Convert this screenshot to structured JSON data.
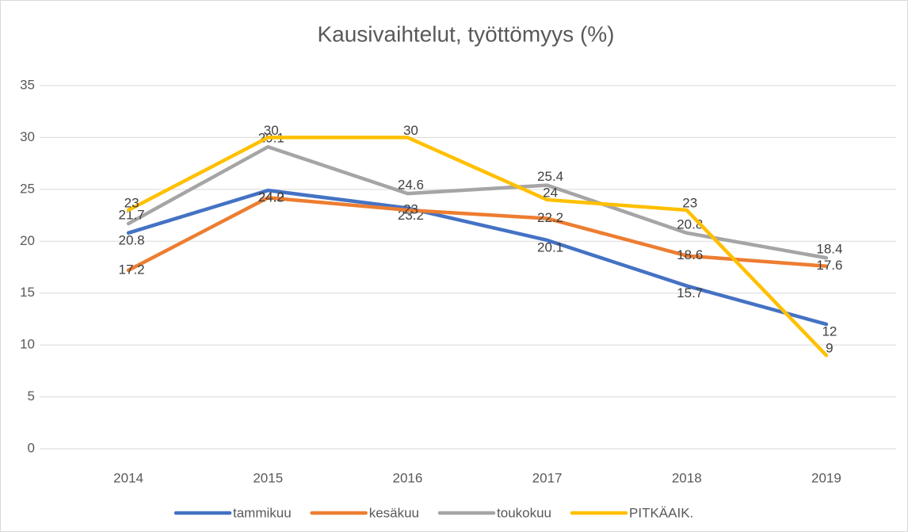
{
  "chart_data": {
    "type": "line",
    "title": "Kausivaihtelut, työttömyys (%)",
    "categories": [
      "2014",
      "2015",
      "2016",
      "2017",
      "2018",
      "2019"
    ],
    "series": [
      {
        "name": "tammikuu",
        "color": "#4472c4",
        "values": [
          20.8,
          24.9,
          23.2,
          20.1,
          15.7,
          12
        ]
      },
      {
        "name": "kesäkuu",
        "color": "#ed7d31",
        "values": [
          17.2,
          24.2,
          23,
          22.2,
          18.6,
          17.6
        ]
      },
      {
        "name": "toukokuu",
        "color": "#a5a5a5",
        "values": [
          21.7,
          29.1,
          24.6,
          25.4,
          20.8,
          18.4
        ]
      },
      {
        "name": "PITKÄAIK.",
        "color": "#ffc000",
        "values": [
          23,
          30,
          30,
          24,
          23,
          9
        ]
      }
    ],
    "ylim": [
      0,
      35
    ],
    "yticks": [
      0,
      5,
      10,
      15,
      20,
      25,
      30,
      35
    ],
    "grid": true,
    "legend": "bottom"
  }
}
